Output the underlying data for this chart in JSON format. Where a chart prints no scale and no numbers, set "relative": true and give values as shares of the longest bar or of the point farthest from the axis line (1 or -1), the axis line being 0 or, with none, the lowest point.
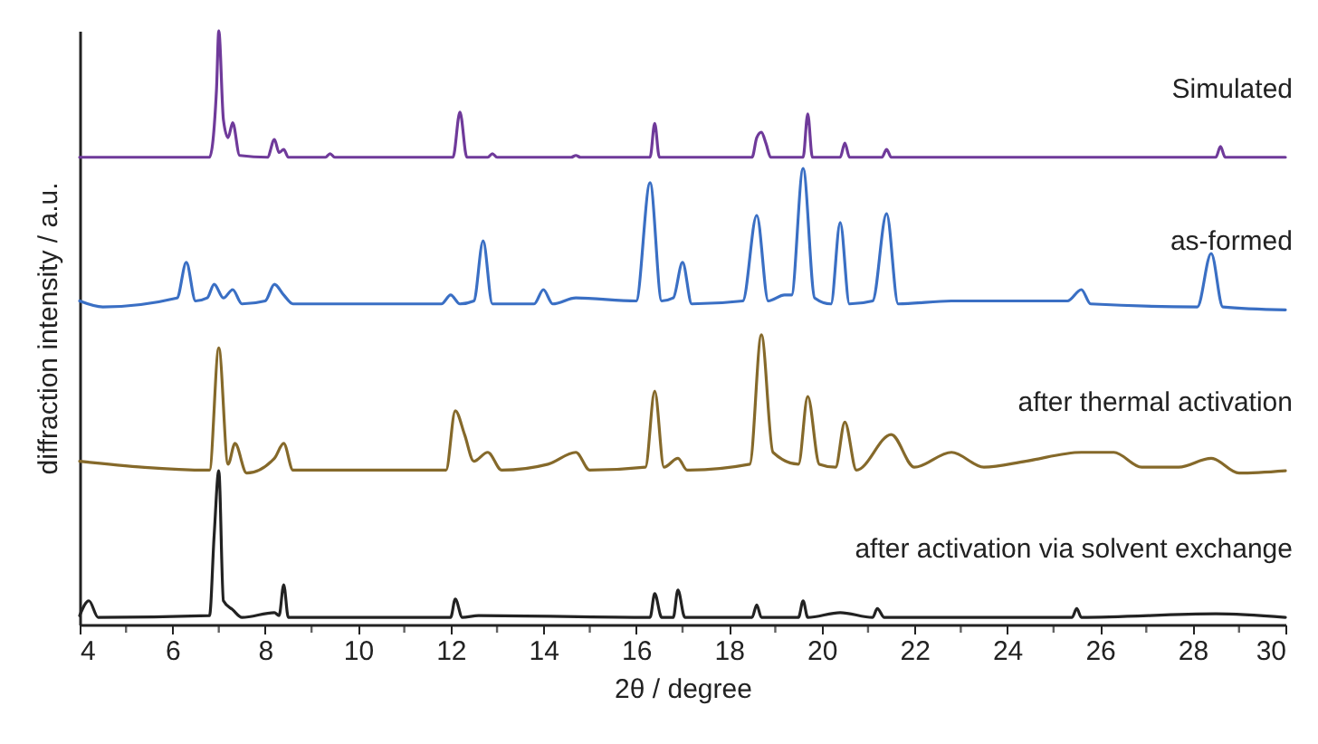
{
  "chart_data": {
    "type": "line",
    "relative": true,
    "xlabel": "2θ / degree",
    "ylabel": "diffraction intensity / a.u.",
    "xlim": [
      4,
      30
    ],
    "xticks": [
      4,
      {
        "value": 5,
        "label": null
      },
      6,
      {
        "value": 7,
        "label": null
      },
      8,
      {
        "value": 9,
        "label": null
      },
      10,
      {
        "value": 11,
        "label": null
      },
      12,
      {
        "value": 13,
        "label": null
      },
      14,
      {
        "value": 15,
        "label": null
      },
      16,
      {
        "value": 17,
        "label": null
      },
      18,
      {
        "value": 19,
        "label": null
      },
      20,
      {
        "value": 21,
        "label": null
      },
      22,
      {
        "value": 23,
        "label": null
      },
      24,
      {
        "value": 25,
        "label": null
      },
      26,
      {
        "value": 27,
        "label": null
      },
      28,
      {
        "value": 29,
        "label": null
      },
      30
    ],
    "grid": false,
    "line_style": "solid",
    "marker": "none",
    "series": [
      {
        "name": "Simulated",
        "color": "#6f3a9a",
        "x": [
          4,
          6.8,
          6.95,
          7.0,
          7.1,
          7.2,
          7.3,
          7.45,
          8.05,
          8.2,
          8.3,
          8.4,
          8.5,
          9.3,
          9.4,
          9.5,
          12.05,
          12.2,
          12.35,
          12.8,
          12.9,
          13.0,
          14.6,
          14.7,
          14.8,
          16.3,
          16.4,
          16.5,
          18.5,
          18.6,
          18.7,
          18.8,
          18.9,
          19.6,
          19.7,
          19.8,
          20.4,
          20.5,
          20.6,
          21.3,
          21.4,
          21.5,
          28.5,
          28.6,
          28.7,
          30
        ],
        "values": [
          0.787,
          0.787,
          0.9,
          1,
          0.85,
          0.82,
          0.845,
          0.79,
          0.787,
          0.817,
          0.795,
          0.8,
          0.787,
          0.787,
          0.793,
          0.787,
          0.787,
          0.863,
          0.787,
          0.787,
          0.793,
          0.787,
          0.787,
          0.79,
          0.787,
          0.787,
          0.844,
          0.787,
          0.787,
          0.82,
          0.829,
          0.81,
          0.787,
          0.787,
          0.86,
          0.787,
          0.787,
          0.811,
          0.787,
          0.787,
          0.8,
          0.787,
          0.787,
          0.805,
          0.787,
          0.787
        ]
      },
      {
        "name": "as-formed",
        "color": "#3a6fc4",
        "x": [
          4,
          4.5,
          6.1,
          6.3,
          6.5,
          6.75,
          6.9,
          7.1,
          7.3,
          7.5,
          8.0,
          8.2,
          8.4,
          8.6,
          11.8,
          12.0,
          12.2,
          12.5,
          12.7,
          12.9,
          13.8,
          14.0,
          14.2,
          14.7,
          16.0,
          16.3,
          16.55,
          16.8,
          17.0,
          17.2,
          18.3,
          18.6,
          18.85,
          19.2,
          19.35,
          19.6,
          19.85,
          20.2,
          20.4,
          20.6,
          21.1,
          21.4,
          21.65,
          22.8,
          25.3,
          25.6,
          25.8,
          28.1,
          28.4,
          28.65,
          30
        ],
        "values": [
          0.545,
          0.535,
          0.55,
          0.61,
          0.545,
          0.55,
          0.573,
          0.55,
          0.564,
          0.54,
          0.545,
          0.573,
          0.555,
          0.54,
          0.54,
          0.555,
          0.54,
          0.545,
          0.646,
          0.54,
          0.54,
          0.564,
          0.54,
          0.55,
          0.545,
          0.744,
          0.545,
          0.55,
          0.61,
          0.54,
          0.545,
          0.689,
          0.545,
          0.555,
          0.555,
          0.768,
          0.55,
          0.54,
          0.677,
          0.54,
          0.545,
          0.692,
          0.54,
          0.545,
          0.545,
          0.564,
          0.54,
          0.535,
          0.625,
          0.535,
          0.53
        ]
      },
      {
        "name": "after thermal activation",
        "color": "#85692a",
        "x": [
          4,
          6.8,
          7.0,
          7.2,
          7.35,
          7.6,
          8.2,
          8.4,
          8.6,
          11.9,
          12.1,
          12.3,
          12.5,
          12.8,
          13.1,
          14.1,
          14.7,
          15.0,
          16.2,
          16.4,
          16.6,
          16.9,
          17.1,
          18.45,
          18.7,
          18.95,
          19.5,
          19.7,
          19.95,
          20.3,
          20.5,
          20.75,
          21.5,
          22.0,
          22.8,
          23.5,
          24.4,
          25.6,
          26.3,
          26.9,
          27.7,
          28.4,
          29.0,
          30
        ],
        "values": [
          0.275,
          0.26,
          0.466,
          0.27,
          0.305,
          0.255,
          0.28,
          0.305,
          0.26,
          0.26,
          0.36,
          0.32,
          0.275,
          0.29,
          0.26,
          0.27,
          0.29,
          0.26,
          0.265,
          0.393,
          0.265,
          0.28,
          0.26,
          0.27,
          0.488,
          0.29,
          0.27,
          0.384,
          0.27,
          0.265,
          0.341,
          0.26,
          0.32,
          0.265,
          0.29,
          0.265,
          0.275,
          0.29,
          0.29,
          0.265,
          0.265,
          0.28,
          0.255,
          0.259
        ]
      },
      {
        "name": "after activation via solvent exchange",
        "color": "#222222",
        "x": [
          4,
          4.2,
          4.4,
          6.8,
          6.9,
          7.0,
          7.1,
          7.3,
          7.5,
          8.2,
          8.3,
          8.4,
          8.5,
          12.0,
          12.1,
          12.25,
          12.6,
          16.3,
          16.4,
          16.55,
          16.8,
          16.9,
          17.05,
          18.5,
          18.6,
          18.7,
          19.5,
          19.6,
          19.7,
          20.4,
          21.1,
          21.2,
          21.35,
          25.4,
          25.5,
          25.6,
          28.5,
          30
        ],
        "values": [
          0.015,
          0.04,
          0.012,
          0.015,
          0.15,
          0.259,
          0.04,
          0.025,
          0.012,
          0.02,
          0.015,
          0.067,
          0.012,
          0.012,
          0.043,
          0.012,
          0.015,
          0.012,
          0.052,
          0.012,
          0.012,
          0.058,
          0.012,
          0.012,
          0.033,
          0.012,
          0.012,
          0.04,
          0.012,
          0.02,
          0.012,
          0.027,
          0.012,
          0.012,
          0.027,
          0.012,
          0.018,
          0.012
        ]
      }
    ]
  }
}
